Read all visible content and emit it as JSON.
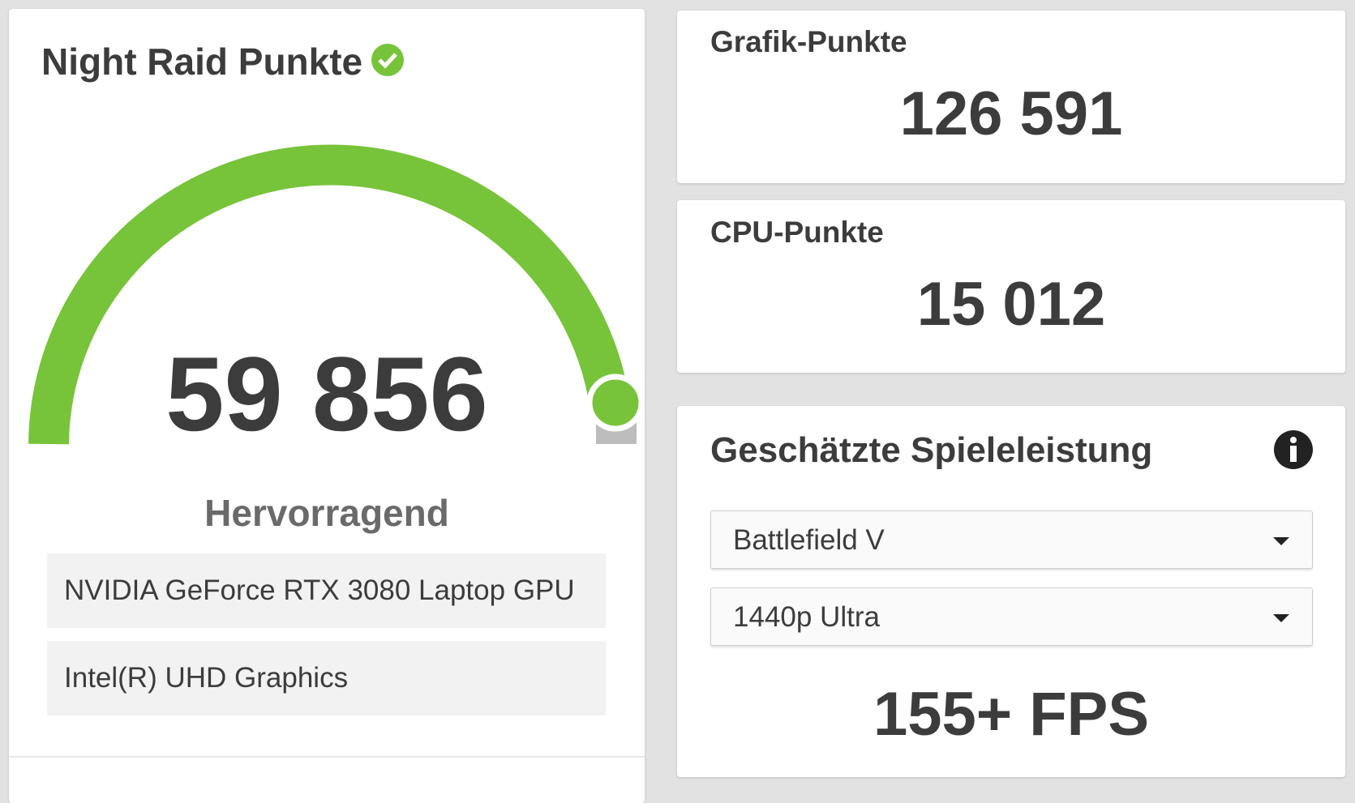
{
  "overall": {
    "title": "Night Raid Punkte",
    "score": "59 856",
    "rating": "Hervorragend",
    "devices": [
      "NVIDIA GeForce RTX 3080 Laptop GPU",
      "Intel(R) UHD Graphics"
    ]
  },
  "graphics": {
    "label": "Grafik-Punkte",
    "score": "126 591"
  },
  "cpu": {
    "label": "CPU-Punkte",
    "score": "15 012"
  },
  "game_performance": {
    "title": "Geschätzte Spieleleistung",
    "game": "Battlefield V",
    "preset": "1440p Ultra",
    "result": "155+ FPS"
  }
}
